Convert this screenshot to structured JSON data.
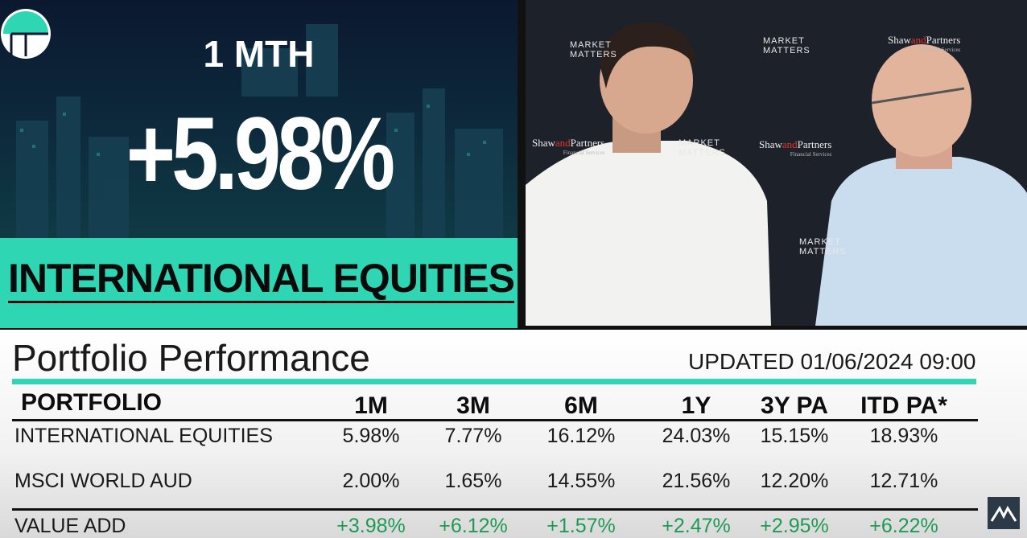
{
  "hero": {
    "period": "1 MTH",
    "return": "+5.98%",
    "title": "INTERNATIONAL EQUITIES"
  },
  "backdrop": {
    "brand_a": [
      "MARKET",
      "MATTERS"
    ],
    "brand_b": [
      "Shaw",
      "and",
      "Partners"
    ],
    "brand_b_sub": "Financial Services"
  },
  "table": {
    "title": "Portfolio Performance",
    "updated": "UPDATED 01/06/2024 09:00",
    "header": [
      "PORTFOLIO",
      "1M",
      "3M",
      "6M",
      "1Y",
      "3Y PA",
      "ITD PA*"
    ],
    "rows": [
      [
        "INTERNATIONAL EQUITIES",
        "5.98%",
        "7.77%",
        "16.12%",
        "24.03%",
        "15.15%",
        "18.93%"
      ],
      [
        "MSCI WORLD AUD",
        "2.00%",
        "1.65%",
        "14.55%",
        "21.56%",
        "12.20%",
        "12.71%"
      ],
      [
        "VALUE ADD",
        "+3.98%",
        "+6.12%",
        "+1.57%",
        "+2.47%",
        "+2.95%",
        "+6.22%"
      ]
    ]
  }
}
